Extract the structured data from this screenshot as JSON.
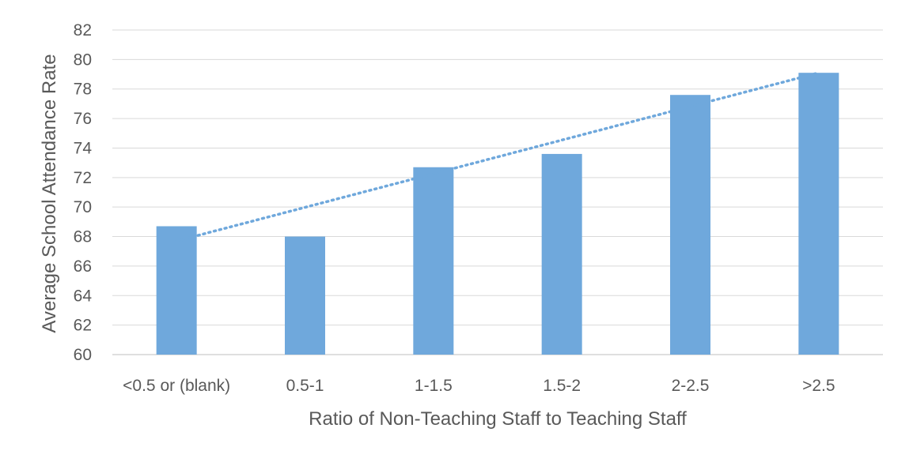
{
  "chart_data": {
    "type": "bar",
    "title": "",
    "xlabel": "Ratio of Non-Teaching Staff to Teaching Staff",
    "ylabel": "Average School Attendance Rate",
    "categories": [
      "<0.5 or (blank)",
      "0.5-1",
      "1-1.5",
      "1.5-2",
      "2-2.5",
      ">2.5"
    ],
    "values": [
      68.7,
      68.0,
      72.7,
      73.6,
      77.6,
      79.1
    ],
    "ylim": [
      60,
      82
    ],
    "yticks": [
      60,
      62,
      64,
      66,
      68,
      70,
      72,
      74,
      76,
      78,
      80,
      82
    ],
    "trendline": {
      "type": "linear",
      "style": "dotted",
      "start": 67.7,
      "end": 79.1
    },
    "grid": true,
    "legend": "none",
    "colors": {
      "bar": "#6fa8dc",
      "trendline": "#6fa8dc",
      "grid": "#d9d9d9",
      "text": "#595959"
    }
  }
}
